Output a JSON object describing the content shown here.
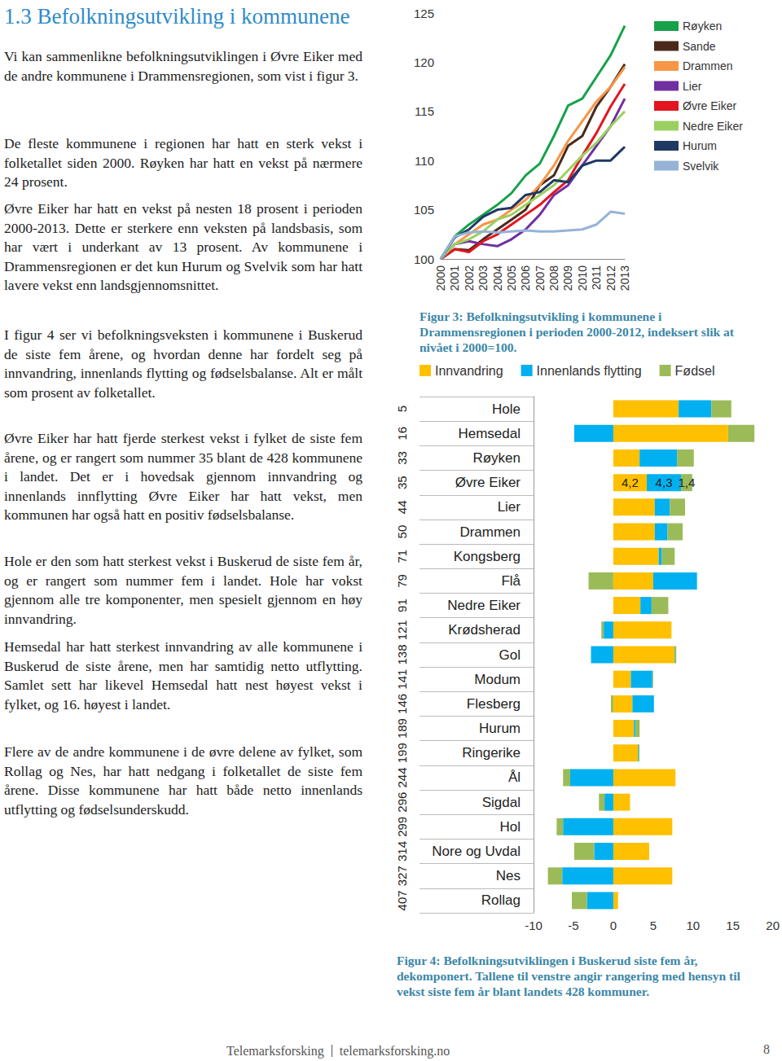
{
  "document": {
    "heading": "1.3 Befolkningsutvikling i kommunene",
    "paragraphs": [
      "Vi kan sammenlikne befolkningsutviklingen i Øvre Eiker med de andre kommunene i Drammensregionen, som vist i figur 3.",
      "De fleste kommunene i regionen har hatt en sterk vekst i folketallet siden 2000. Røyken har hatt en vekst på nærmere 24 prosent.",
      "Øvre Eiker har hatt en vekst på nesten 18 prosent i perioden 2000-2013. Dette er sterkere enn veksten på landsbasis, som har vært i underkant av 13 prosent. Av kommunene i Drammensregionen er det kun Hurum og Svelvik som har hatt lavere vekst enn landsgjennomsnittet.",
      "I figur 4 ser vi befolkningsveksten i kommunene i Buskerud de siste fem årene, og hvordan denne har fordelt seg på innvandring, innenlands flytting og fødselsbalanse. Alt er målt som prosent av folketallet.",
      "Øvre Eiker har hatt fjerde sterkest vekst i fylket de siste fem årene, og er rangert som nummer 35 blant de 428 kommunene i landet. Det er i hovedsak gjennom innvandring og innenlands innflytting Øvre Eiker har hatt vekst, men kommunen har også hatt en positiv fødselsbalanse.",
      "Hole er den som hatt sterkest vekst i Buskerud de siste fem år, og er rangert som nummer fem i landet. Hole har vokst gjennom alle tre komponenter, men spesielt gjennom en høy innvandring.",
      "Hemsedal har hatt sterkest innvandring av alle kommunene i Buskerud de siste årene, men har samtidig netto utflytting. Samlet sett har likevel Hemsedal hatt nest høyest vekst i fylket, og 16. høyest i landet.",
      "Flere av de andre kommunene i de øvre delene av fylket, som Rollag og Nes, har hatt nedgang i folketallet de siste fem årene. Disse kommunene har hatt både netto innenlands utflytting og fødselsunderskudd."
    ],
    "publisher": "Telemarksforsking",
    "website": "telemarksforsking.no",
    "page_number": 8
  },
  "chart_data": [
    {
      "type": "line",
      "title": "Figur 3: Befolkningsutvikling i kommunene i Drammensregionen i perioden 2000-2012, indeksert slik at nivået i 2000=100.",
      "categories": [
        "2000",
        "2001",
        "2002",
        "2003",
        "2004",
        "2005",
        "2006",
        "2007",
        "2008",
        "2009",
        "2010",
        "2011",
        "2012",
        "2013"
      ],
      "ylim": [
        100,
        125
      ],
      "yticks": [
        100,
        105,
        110,
        115,
        120,
        125
      ],
      "grid": false,
      "legend": "right",
      "series": [
        {
          "name": "Røyken",
          "color": "#17a24a",
          "values": [
            100,
            102.3,
            103.5,
            104.5,
            105.5,
            106.7,
            108.5,
            109.7,
            112.5,
            115.6,
            116.3,
            118.5,
            120.7,
            123.7
          ]
        },
        {
          "name": "Sande",
          "color": "#4b2a1c",
          "values": [
            100,
            101,
            100.9,
            102,
            103,
            104,
            105,
            107.5,
            108.5,
            111.5,
            112.5,
            115.5,
            117.5,
            119.8
          ]
        },
        {
          "name": "Drammen",
          "color": "#f79646",
          "values": [
            100,
            101.5,
            102.5,
            103.5,
            104,
            105,
            106,
            107.5,
            109.5,
            112,
            114,
            116,
            117.5,
            119.5
          ]
        },
        {
          "name": "Lier",
          "color": "#7030a0",
          "values": [
            100,
            101.5,
            101.8,
            101.5,
            101.3,
            102,
            103,
            104.5,
            106.5,
            107.5,
            109.5,
            111.5,
            113.5,
            116.3
          ]
        },
        {
          "name": "Øvre Eiker",
          "color": "#e3151f",
          "values": [
            100,
            101,
            100.7,
            101.8,
            102.5,
            103.5,
            104.5,
            105.5,
            106.8,
            108,
            110.5,
            112.8,
            115.5,
            117.8
          ]
        },
        {
          "name": "Nedre Eiker",
          "color": "#9bd060",
          "values": [
            100,
            101.5,
            102,
            102.8,
            104,
            104.5,
            105.5,
            106.5,
            107.5,
            109,
            110.5,
            111.8,
            113.5,
            115
          ]
        },
        {
          "name": "Hurum",
          "color": "#1f3864",
          "values": [
            100,
            102.2,
            103,
            104.3,
            105,
            105.2,
            106.5,
            106.8,
            108,
            107.8,
            109.5,
            110,
            110,
            111.4
          ]
        },
        {
          "name": "Svelvik",
          "color": "#95b3d7",
          "values": [
            100,
            102.3,
            102.7,
            102.8,
            102.7,
            102.8,
            102.9,
            102.8,
            102.8,
            102.9,
            103,
            103.5,
            104.8,
            104.6
          ]
        }
      ]
    },
    {
      "type": "bar",
      "title": "Figur 4: Befolkningsutviklingen i Buskerud siste fem år, dekomponert. Tallene til venstre angir rangering med hensyn til vekst siste fem år blant landets 428 kommuner.",
      "orientation": "horizontal",
      "stacked": true,
      "data_labels": true,
      "grid": false,
      "legend": "top",
      "categories": [
        "Hole",
        "Hemsedal",
        "Røyken",
        "Øvre Eiker",
        "Lier",
        "Drammen",
        "Kongsberg",
        "Flå",
        "Nedre Eiker",
        "Krødsherad",
        "Gol",
        "Modum",
        "Flesberg",
        "Hurum",
        "Ringerike",
        "Ål",
        "Sigdal",
        "Hol",
        "Nore og Uvdal",
        "Nes",
        "Rollag"
      ],
      "ranks": [
        5,
        16,
        33,
        35,
        44,
        50,
        71,
        79,
        91,
        121,
        138,
        141,
        146,
        189,
        199,
        244,
        296,
        299,
        314,
        327,
        407
      ],
      "xlim": [
        -10,
        20
      ],
      "xticks": [
        -10,
        -5,
        0,
        5,
        10,
        15,
        20
      ],
      "series": [
        {
          "name": "Innvandring",
          "color": "#ffc000",
          "values": [
            8.2,
            14.4,
            3.3,
            4.2,
            5.2,
            5.2,
            5.7,
            5.0,
            3.4,
            7.3,
            7.6,
            2.2,
            2.4,
            2.6,
            3.1,
            7.8,
            2.1,
            7.4,
            4.5,
            7.4,
            0.6
          ],
          "value_labels": [
            null,
            null,
            null,
            "4,2",
            null,
            null,
            null,
            null,
            null,
            null,
            null,
            null,
            null,
            null,
            null,
            null,
            null,
            null,
            null,
            null,
            null
          ]
        },
        {
          "name": "Innenlands flytting",
          "color": "#00b0f0",
          "values": [
            4.1,
            -4.9,
            4.7,
            4.3,
            1.9,
            1.6,
            0.4,
            5.5,
            1.4,
            -1.2,
            -2.8,
            2.7,
            2.7,
            0.2,
            0.1,
            -5.4,
            -1.1,
            -6.3,
            -2.4,
            -6.4,
            -3.3
          ],
          "value_labels": [
            null,
            null,
            null,
            "4,3",
            null,
            null,
            null,
            null,
            null,
            null,
            null,
            null,
            null,
            null,
            null,
            null,
            null,
            null,
            null,
            null,
            null
          ]
        },
        {
          "name": "Fødsel",
          "color": "#9bbb59",
          "values": [
            2.5,
            3.3,
            2.1,
            1.4,
            1.9,
            1.9,
            1.6,
            -3.1,
            2.1,
            -0.3,
            0.3,
            0.1,
            -0.3,
            0.5,
            0.1,
            -0.9,
            -0.7,
            -0.8,
            -2.5,
            -1.8,
            -1.9
          ],
          "value_labels": [
            null,
            null,
            null,
            "1,4",
            null,
            null,
            null,
            null,
            null,
            null,
            null,
            null,
            null,
            null,
            null,
            null,
            null,
            null,
            null,
            null,
            null
          ]
        }
      ]
    }
  ]
}
